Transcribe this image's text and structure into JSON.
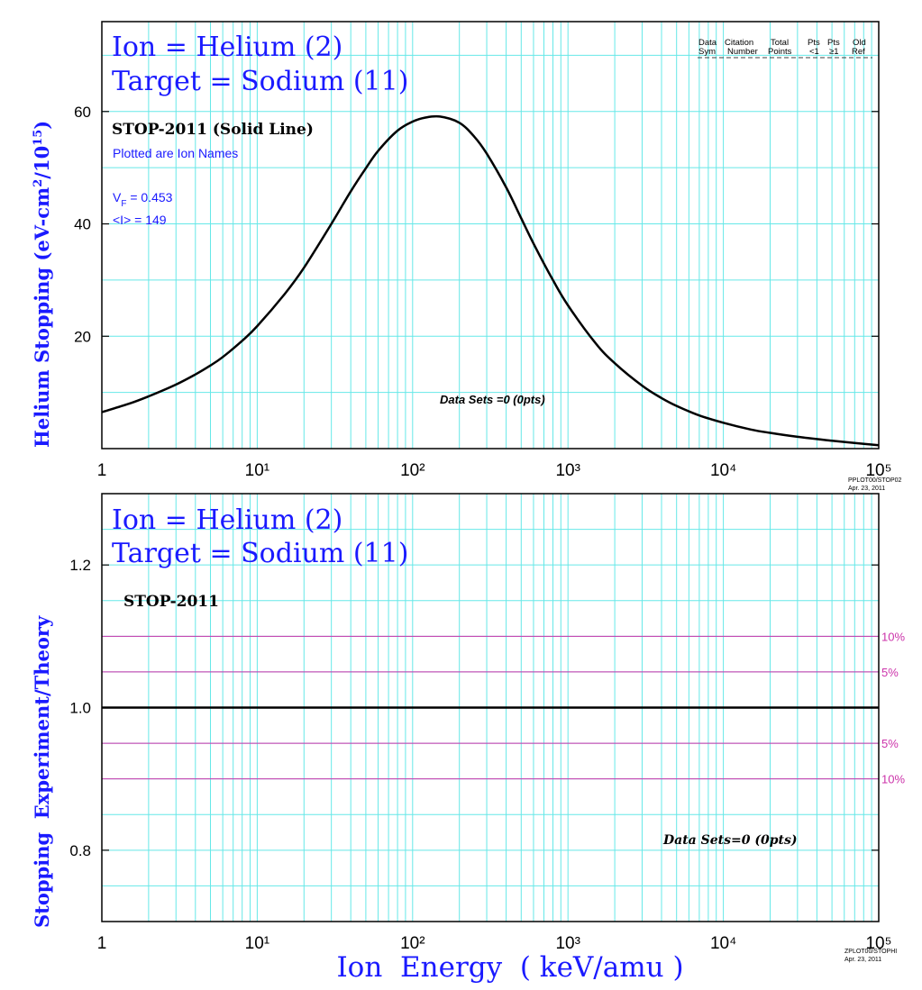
{
  "top_panel": {
    "title_line1": "Ion = Helium (2)",
    "title_line2": "Target = Sodium (11)",
    "curve_label": "STOP-2011 (Solid Line)",
    "subnote": "Plotted are Ion Names",
    "vf_label": "V",
    "vf_sub": "F",
    "vf_value": "  = 0.453",
    "i_label": "<I> = 149",
    "datasets_note": "Data Sets =0 (0pts)",
    "ylabel_main": "Helium Stopping (eV-cm",
    "ylabel_sup1": "2",
    "ylabel_mid": "/10",
    "ylabel_sup2": "15",
    "ylabel_end": ")",
    "legend_header": {
      "col1_line1": "Data",
      "col1_line2": "Sym",
      "col2_line1": "Citation",
      "col2_line2": "Number",
      "col3_line1": "Total",
      "col3_line2": "Points",
      "col4_line1": "Pts",
      "col4_line2": "<1",
      "col5_line1": "Pts",
      "col5_line2": "≥1",
      "col6_line1": "Old",
      "col6_line2": "Ref"
    },
    "stamp_line1": "PPLOT00/STOP02",
    "stamp_line2": "Apr. 23, 2011"
  },
  "bottom_panel": {
    "title_line1": "Ion = Helium (2)",
    "title_line2": "Target = Sodium (11)",
    "curve_label": "STOP-2011",
    "datasets_note": "Data Sets=0 (0pts)",
    "ylabel": "Stopping  Experiment/Theory",
    "band_labels": [
      "10%",
      "5%",
      "5%",
      "10%"
    ],
    "stamp_line1": "ZPLOT00/STOPHI",
    "stamp_line2": "Apr. 23, 2011"
  },
  "xlabel": "Ion  Energy  ( keV/amu )",
  "colors": {
    "grid": "#66e8e8",
    "text_blue": "#1a1aff",
    "band": "#cc33aa",
    "curve": "#000000"
  },
  "chart_data": [
    {
      "type": "line",
      "title": "Ion = Helium (2) Target = Sodium (11)",
      "xlabel": "",
      "ylabel": "Helium Stopping (eV-cm2/1015)",
      "xscale": "log",
      "xlim": [
        1,
        100000
      ],
      "ylim": [
        0,
        76
      ],
      "x_ticks": [
        "1",
        "10¹",
        "10²",
        "10³",
        "10⁴",
        "10⁵"
      ],
      "y_ticks": [
        20,
        40,
        60
      ],
      "grid": true,
      "series": [
        {
          "name": "STOP-2011 (Solid Line)",
          "x": [
            1,
            1.5,
            2,
            3,
            4,
            5,
            6,
            8,
            10,
            15,
            20,
            30,
            40,
            50,
            60,
            80,
            100,
            120,
            150,
            200,
            250,
            300,
            400,
            500,
            600,
            800,
            1000,
            1500,
            2000,
            3000,
            4000,
            5000,
            7000,
            10000,
            15000,
            20000,
            30000,
            50000,
            70000,
            100000
          ],
          "y": [
            6.5,
            8.0,
            9.3,
            11.4,
            13.2,
            14.8,
            16.3,
            19.2,
            21.8,
            27.5,
            32.2,
            40.0,
            45.8,
            49.9,
            53.0,
            56.6,
            58.2,
            58.9,
            59.1,
            58.0,
            55.5,
            52.5,
            46.5,
            41.0,
            36.5,
            30.0,
            25.5,
            18.8,
            15.2,
            11.2,
            9.0,
            7.6,
            5.9,
            4.6,
            3.4,
            2.8,
            2.1,
            1.4,
            1.0,
            0.6
          ]
        }
      ]
    },
    {
      "type": "line",
      "title": "Ion = Helium (2) Target = Sodium (11)",
      "xlabel": "Ion  Energy  ( keV/amu )",
      "ylabel": "Stopping  Experiment/Theory",
      "xscale": "log",
      "xlim": [
        1,
        100000
      ],
      "ylim": [
        0.7,
        1.3
      ],
      "x_ticks": [
        "1",
        "10¹",
        "10²",
        "10³",
        "10⁴",
        "10⁵"
      ],
      "y_ticks": [
        0.8,
        1.0,
        1.2
      ],
      "grid": true,
      "reference_lines": [
        {
          "y": 1.1,
          "label": "10%"
        },
        {
          "y": 1.05,
          "label": "5%"
        },
        {
          "y": 0.95,
          "label": "5%"
        },
        {
          "y": 0.9,
          "label": "10%"
        }
      ],
      "series": [
        {
          "name": "STOP-2011",
          "x": [
            1,
            100000
          ],
          "y": [
            1.0,
            1.0
          ]
        }
      ]
    }
  ]
}
